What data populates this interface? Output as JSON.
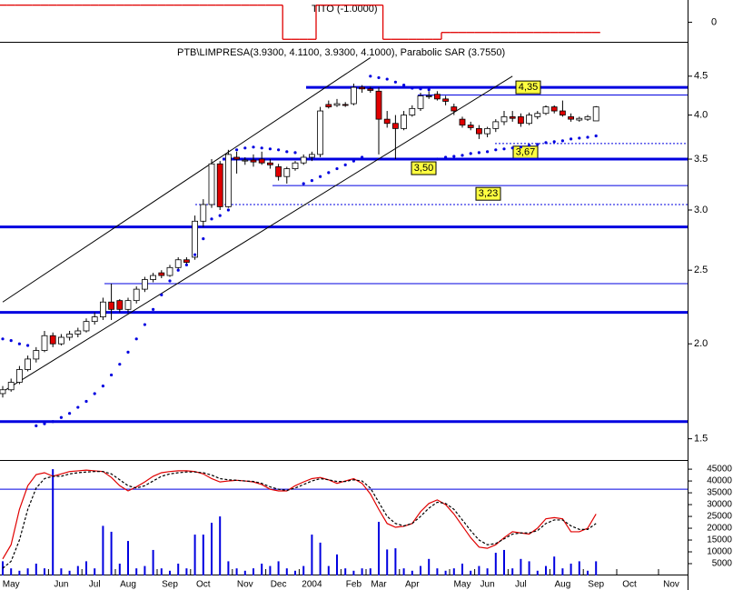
{
  "chart_data": {
    "type": "candlestick",
    "title": "PTB\\LIMPRESA(3.9300, 4.1100, 3.9300, 4.1000), Parabolic SAR (3.7550)",
    "categories": [
      null,
      "May",
      null,
      null,
      null,
      null,
      null,
      "Jun",
      null,
      null,
      null,
      "Jul",
      null,
      null,
      null,
      "Aug",
      null,
      null,
      null,
      null,
      "Sep",
      null,
      null,
      null,
      "Oct",
      null,
      null,
      null,
      null,
      "Nov",
      null,
      null,
      null,
      "Dec",
      null,
      null,
      null,
      "2004",
      null,
      null,
      null,
      null,
      "Feb",
      null,
      null,
      "Mar",
      null,
      null,
      null,
      "Apr",
      null,
      null,
      null,
      null,
      null,
      "May",
      null,
      null,
      "Jun",
      null,
      null,
      null,
      "Jul",
      null,
      null,
      null,
      null,
      "Aug",
      null,
      null,
      null,
      "Sep",
      null,
      null,
      null,
      "Oct",
      null,
      null,
      null,
      null,
      "Nov",
      null,
      null
    ],
    "open": [
      1.72,
      1.74,
      1.78,
      1.85,
      1.91,
      1.96,
      2.05,
      2.0,
      2.04,
      2.06,
      2.08,
      2.14,
      2.17,
      2.27,
      2.28,
      2.22,
      2.28,
      2.36,
      2.43,
      2.48,
      2.46,
      2.52,
      2.58,
      2.6,
      2.9,
      3.05,
      3.45,
      3.03,
      3.52,
      3.48,
      3.49,
      3.5,
      3.46,
      3.42,
      3.32,
      3.4,
      3.46,
      3.52,
      3.55,
      4.13,
      4.12,
      4.13,
      4.14,
      4.35,
      4.33,
      4.3,
      3.95,
      3.9,
      3.84,
      4.0,
      4.08,
      4.24,
      4.26,
      4.2,
      4.1,
      3.95,
      3.88,
      3.84,
      3.78,
      3.84,
      3.92,
      3.98,
      3.98,
      3.9,
      3.98,
      4.02,
      4.1,
      4.05,
      3.98,
      3.94,
      3.95,
      3.93,
      null,
      null,
      null,
      null,
      null,
      null,
      null,
      null,
      null,
      null,
      null
    ],
    "high": [
      1.76,
      1.8,
      1.87,
      1.93,
      1.98,
      2.08,
      2.07,
      2.06,
      2.08,
      2.1,
      2.16,
      2.2,
      2.3,
      2.4,
      2.29,
      2.3,
      2.38,
      2.45,
      2.48,
      2.5,
      2.54,
      2.6,
      2.6,
      2.95,
      3.1,
      3.5,
      3.48,
      3.6,
      3.58,
      3.52,
      3.55,
      3.58,
      3.5,
      3.45,
      3.42,
      3.48,
      3.55,
      3.58,
      4.1,
      4.18,
      4.2,
      4.16,
      4.4,
      4.38,
      4.36,
      4.35,
      4.05,
      4.0,
      4.05,
      4.12,
      4.28,
      4.3,
      4.3,
      4.24,
      4.14,
      3.98,
      3.92,
      3.88,
      3.86,
      3.95,
      4.05,
      4.05,
      4.02,
      4.03,
      4.05,
      4.12,
      4.12,
      4.18,
      4.02,
      3.98,
      4.0,
      4.11,
      null,
      null,
      null,
      null,
      null,
      null,
      null,
      null,
      null,
      null,
      null
    ],
    "low": [
      1.7,
      1.73,
      1.77,
      1.84,
      1.89,
      1.95,
      1.98,
      1.99,
      2.02,
      2.04,
      2.07,
      2.12,
      2.15,
      2.15,
      2.2,
      2.2,
      2.26,
      2.34,
      2.41,
      2.44,
      2.45,
      2.5,
      2.55,
      2.58,
      2.85,
      3.02,
      3.0,
      3.02,
      3.35,
      3.44,
      3.42,
      3.44,
      3.4,
      3.28,
      3.25,
      3.38,
      3.44,
      3.48,
      3.52,
      4.08,
      4.1,
      4.1,
      4.12,
      4.28,
      4.28,
      3.55,
      3.85,
      3.5,
      3.82,
      3.98,
      4.05,
      4.2,
      4.18,
      4.12,
      4.0,
      3.85,
      3.82,
      3.72,
      3.74,
      3.8,
      3.88,
      3.92,
      3.86,
      3.88,
      3.95,
      4.0,
      4.02,
      3.98,
      3.92,
      3.92,
      3.93,
      3.93,
      null,
      null,
      null,
      null,
      null,
      null,
      null,
      null,
      null,
      null,
      null
    ],
    "close": [
      1.74,
      1.78,
      1.85,
      1.91,
      1.96,
      2.05,
      2.0,
      2.04,
      2.06,
      2.08,
      2.14,
      2.17,
      2.27,
      2.22,
      2.22,
      2.28,
      2.36,
      2.43,
      2.46,
      2.46,
      2.52,
      2.58,
      2.56,
      2.9,
      3.05,
      3.45,
      3.03,
      3.55,
      3.5,
      3.49,
      3.47,
      3.46,
      3.44,
      3.32,
      3.4,
      3.46,
      3.52,
      3.55,
      4.05,
      4.1,
      4.14,
      4.12,
      4.35,
      4.33,
      4.31,
      3.95,
      3.9,
      3.84,
      4.0,
      4.08,
      4.24,
      4.24,
      4.2,
      4.17,
      4.05,
      3.88,
      3.85,
      3.78,
      3.84,
      3.92,
      3.98,
      3.96,
      3.9,
      4.0,
      4.02,
      4.1,
      4.05,
      4.0,
      3.95,
      3.96,
      3.98,
      4.1,
      null,
      null,
      null,
      null,
      null,
      null,
      null,
      null,
      null,
      null,
      null
    ],
    "up_color": "#ffffff",
    "down_color": "#e00000",
    "sar": {
      "color": "#0000e0",
      "values": [
        2.03,
        2.02,
        2.0,
        1.99,
        1.56,
        1.57,
        1.58,
        1.6,
        1.62,
        1.65,
        1.68,
        1.72,
        1.76,
        1.82,
        1.88,
        1.95,
        2.03,
        2.12,
        2.22,
        2.32,
        2.42,
        2.5,
        2.54,
        2.62,
        2.75,
        2.92,
        2.95,
        3.0,
        3.6,
        3.62,
        3.63,
        3.62,
        3.61,
        3.6,
        3.58,
        3.57,
        3.25,
        3.28,
        3.32,
        3.36,
        3.4,
        3.44,
        3.48,
        3.52,
        4.5,
        4.48,
        4.46,
        4.42,
        4.38,
        4.34,
        4.33,
        4.32,
        3.5,
        3.52,
        3.53,
        3.54,
        3.56,
        3.57,
        3.58,
        3.6,
        3.61,
        3.62,
        3.63,
        3.65,
        3.66,
        3.68,
        3.69,
        3.7,
        3.72,
        3.73,
        3.74,
        3.755,
        null,
        null,
        null,
        null,
        null,
        null,
        null,
        null,
        null,
        null,
        null
      ]
    },
    "log": true,
    "ylim": [
      1.43,
      4.98
    ],
    "yticks": [
      4.5,
      {
        "value": 4,
        "label": "4.0"
      },
      3.5,
      {
        "value": 3,
        "label": "3.0"
      },
      2.5,
      {
        "value": 2,
        "label": "2.0"
      },
      1.5
    ],
    "hlines": [
      {
        "value": 4.35,
        "label": "4,35",
        "style": "thick",
        "color": "#0000e0"
      },
      {
        "value": 4.25,
        "style": "thin",
        "color": "#0000e0"
      },
      {
        "value": 3.67,
        "label": "3,67",
        "style": "dotted",
        "color": "#0000e0"
      },
      {
        "value": 3.5,
        "label": "3,50",
        "style": "thick",
        "color": "#0000e0"
      },
      {
        "value": 3.23,
        "label": "3,23",
        "style": "thin",
        "color": "#0000e0"
      },
      {
        "value": 3.05,
        "style": "dotted",
        "color": "#0000e0"
      },
      {
        "value": 2.85,
        "style": "thick",
        "color": "#0000e0"
      },
      {
        "value": 2.4,
        "style": "thin",
        "color": "#0000e0"
      },
      {
        "value": 2.2,
        "style": "thick",
        "color": "#0000e0"
      },
      {
        "value": 1.58,
        "style": "thick",
        "color": "#0000e0"
      }
    ],
    "trendlines": [
      {
        "x": [
          0,
          44
        ],
        "values": [
          2.27,
          4.76
        ],
        "color": "#000000"
      },
      {
        "x": [
          0,
          61
        ],
        "values": [
          1.73,
          4.5
        ],
        "color": "#000000"
      }
    ],
    "indicator": {
      "title": "TITO (-1.0000)",
      "color": "#e00000",
      "ylim": [
        -1.2,
        1.3
      ],
      "yticks": [
        0
      ],
      "values": [
        1,
        1,
        1,
        1,
        1,
        1,
        1,
        1,
        1,
        1,
        1,
        1,
        1,
        1,
        1,
        1,
        1,
        1,
        1,
        1,
        1,
        1,
        1,
        1,
        1,
        1,
        1,
        1,
        1,
        1,
        1,
        1,
        1,
        1,
        -1,
        -1,
        -1,
        -1,
        1,
        1,
        1,
        1,
        1,
        1,
        1,
        1,
        -1,
        -1,
        -1,
        -1,
        -1,
        -1,
        -1,
        -0.6,
        -0.6,
        -0.6,
        -0.6,
        -0.6,
        -0.6,
        -0.6,
        -0.6,
        -0.6,
        -0.6,
        -0.6,
        -0.6,
        -0.6,
        -0.6,
        -0.6,
        -0.6,
        -0.6,
        -0.6,
        -0.6,
        null,
        null,
        null,
        null,
        null,
        null,
        null,
        null,
        null,
        null,
        null
      ]
    },
    "volume": {
      "color": "#0000e0",
      "ylim": [
        0,
        48500
      ],
      "yticks": [
        5000,
        10000,
        15000,
        20000,
        25000,
        30000,
        35000,
        40000,
        45000
      ],
      "hline": 36500,
      "values": [
        6000,
        3000,
        2000,
        3000,
        5000,
        3000,
        45000,
        3000,
        2000,
        4000,
        6000,
        3000,
        21000,
        18500,
        5000,
        14600,
        3000,
        4000,
        10800,
        3000,
        2000,
        5000,
        3000,
        17300,
        17300,
        22300,
        25000,
        6000,
        3000,
        2000,
        3000,
        5000,
        4000,
        6000,
        3000,
        2000,
        4000,
        17300,
        13900,
        4000,
        8900,
        3000,
        2000,
        3000,
        3000,
        22700,
        11000,
        11500,
        3000,
        2000,
        4000,
        7000,
        3000,
        2000,
        3000,
        5000,
        2000,
        4000,
        3000,
        9600,
        10800,
        3000,
        7000,
        6000,
        2000,
        4000,
        8000,
        3000,
        5000,
        6000,
        2000,
        6000,
        null,
        null,
        null,
        null,
        null,
        null,
        null,
        null,
        null,
        null,
        null
      ],
      "lines": [
        {
          "color": "#e00000",
          "dash": false,
          "values": [
            7000,
            13000,
            28000,
            38000,
            42700,
            43500,
            42000,
            43000,
            44000,
            44300,
            44600,
            44300,
            44000,
            41500,
            38000,
            35800,
            37500,
            39600,
            42000,
            43500,
            44000,
            44300,
            44300,
            44000,
            43000,
            41000,
            39600,
            40000,
            40300,
            40000,
            39600,
            38500,
            36500,
            35800,
            35800,
            38000,
            39600,
            41000,
            41500,
            40500,
            39000,
            40000,
            41000,
            39000,
            34500,
            28000,
            22000,
            20400,
            20800,
            22000,
            27000,
            30500,
            32000,
            30000,
            26000,
            21000,
            16000,
            12000,
            11500,
            13000,
            16000,
            18500,
            18000,
            17500,
            20000,
            24000,
            24500,
            24000,
            18500,
            18500,
            20000,
            26000,
            null,
            null,
            null,
            null,
            null,
            null,
            null,
            null,
            null,
            null,
            null
          ]
        },
        {
          "color": "#000000",
          "dash": true,
          "values": [
            3000,
            6000,
            15000,
            28000,
            37000,
            41000,
            42000,
            42000,
            43000,
            43500,
            43800,
            44000,
            44000,
            43000,
            40500,
            38000,
            37000,
            38000,
            40000,
            42000,
            43000,
            43500,
            43800,
            43800,
            43500,
            42500,
            41000,
            40500,
            40300,
            40000,
            39800,
            39000,
            37500,
            36500,
            36000,
            37000,
            38500,
            40000,
            41000,
            40500,
            39800,
            39800,
            40500,
            40000,
            37000,
            31000,
            25000,
            22000,
            21000,
            22000,
            25000,
            28500,
            31000,
            30500,
            28000,
            23500,
            19000,
            15000,
            13000,
            13500,
            15500,
            17500,
            18000,
            18000,
            19000,
            22000,
            23500,
            23500,
            21000,
            19500,
            19500,
            22000,
            null,
            null,
            null,
            null,
            null,
            null,
            null,
            null,
            null,
            null,
            null
          ]
        }
      ]
    }
  }
}
